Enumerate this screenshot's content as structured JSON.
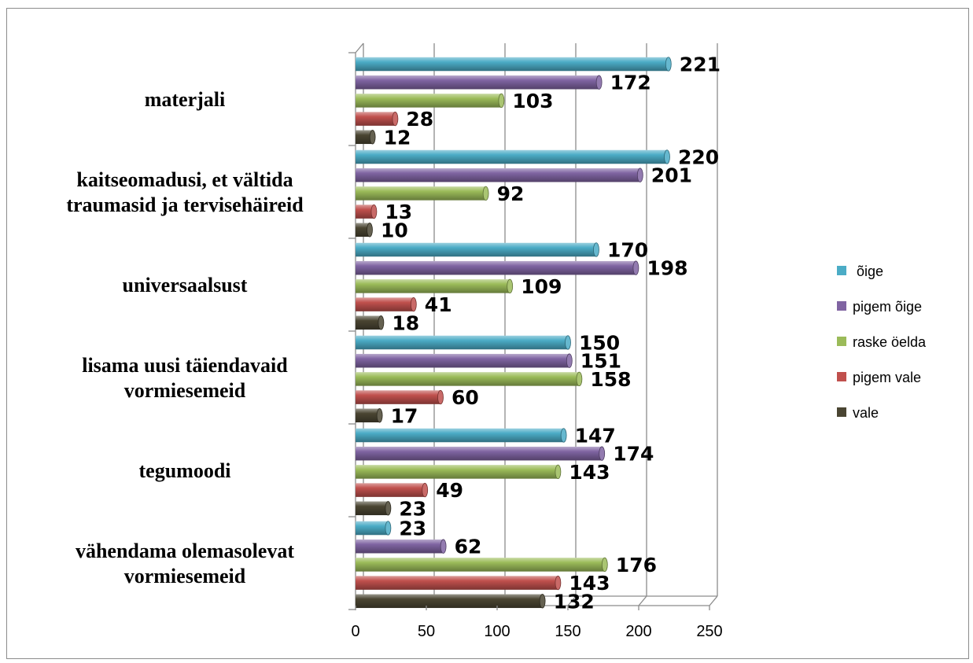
{
  "chart_data": {
    "type": "bar",
    "orientation": "horizontal",
    "style": "3d-cylinder",
    "categories": [
      [
        "materjali"
      ],
      [
        "kaitseomadusi, et vältida",
        "traumasid ja tervisehäireid"
      ],
      [
        "universaalsust"
      ],
      [
        "lisama uusi täiendavaid",
        "vormiesemeid"
      ],
      [
        "tegumoodi"
      ],
      [
        "vähendama olemasolevat",
        "vormiesemeid"
      ]
    ],
    "series": [
      {
        "name": " õige",
        "color": "#4bacc6",
        "values": [
          221,
          220,
          170,
          150,
          147,
          23
        ]
      },
      {
        "name": "pigem õige",
        "color": "#8064a2",
        "values": [
          172,
          201,
          198,
          151,
          174,
          62
        ]
      },
      {
        "name": "raske öelda",
        "color": "#9bbb59",
        "values": [
          103,
          92,
          109,
          158,
          143,
          176
        ]
      },
      {
        "name": "pigem vale",
        "color": "#c0504d",
        "values": [
          28,
          13,
          41,
          60,
          49,
          143
        ]
      },
      {
        "name": "vale",
        "color": "#4a4532",
        "values": [
          12,
          10,
          18,
          17,
          23,
          132
        ]
      }
    ],
    "xlim": [
      0,
      250
    ],
    "x_ticks": [
      "0",
      "50",
      "100",
      "150",
      "200",
      "250"
    ],
    "grid": true,
    "legend_position": "right"
  }
}
